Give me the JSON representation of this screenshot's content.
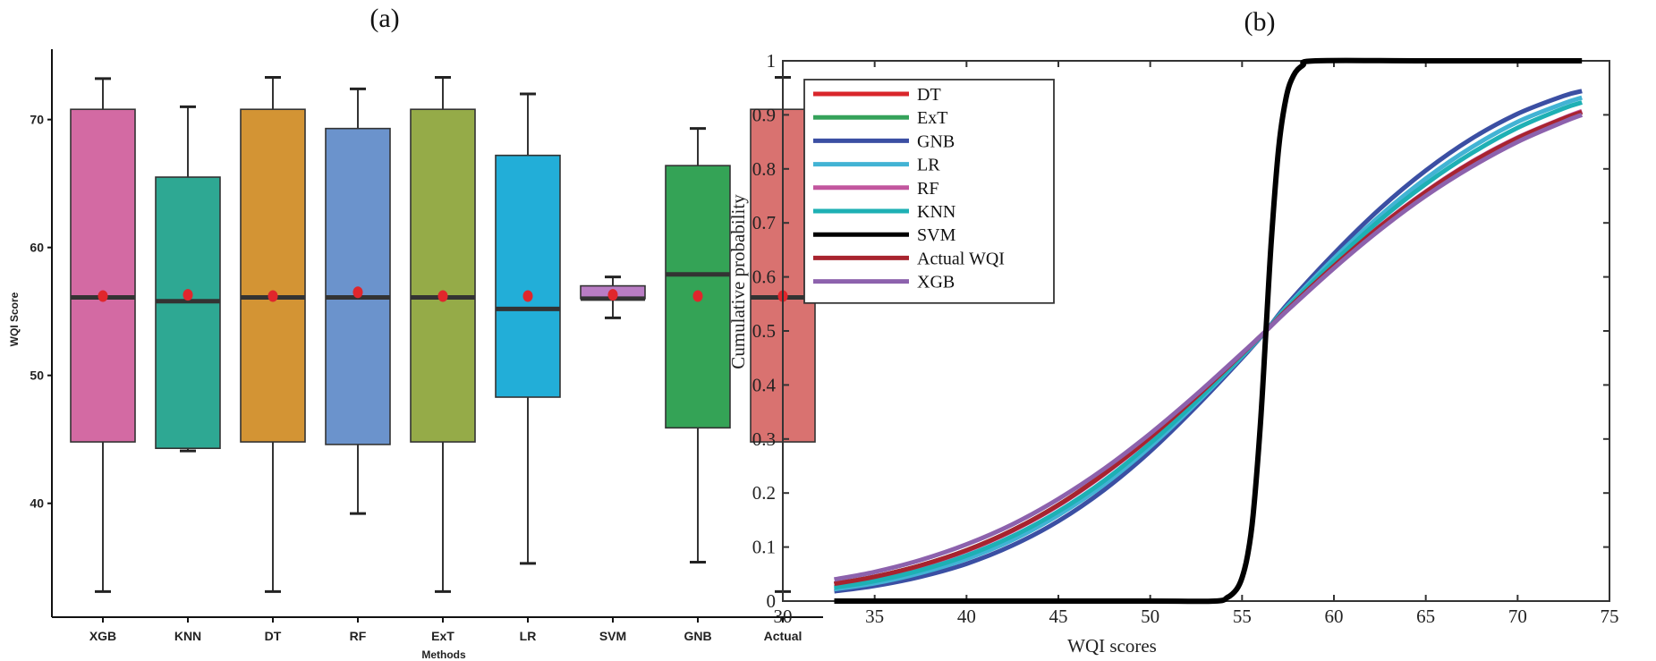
{
  "chart_data": [
    {
      "type": "box",
      "panel_label": "(a)",
      "title": "",
      "xlabel": "Methods",
      "ylabel": "WQI Score",
      "ylim": [
        31.1,
        75.5
      ],
      "yticks": [
        40,
        50,
        60,
        70
      ],
      "categories": [
        "XGB",
        "KNN",
        "DT",
        "RF",
        "ExT",
        "LR",
        "SVM",
        "GNB",
        "Actual"
      ],
      "series": [
        {
          "name": "XGB",
          "color": "#d36aa3",
          "whisker_high": 73.2,
          "q3": 70.8,
          "median": 56.1,
          "mean": 56.2,
          "q1": 44.8,
          "whisker_low": 33.1
        },
        {
          "name": "KNN",
          "color": "#2ea893",
          "whisker_high": 71.0,
          "q3": 65.5,
          "median": 55.8,
          "mean": 56.3,
          "q1": 44.3,
          "whisker_low": 44.1
        },
        {
          "name": "DT",
          "color": "#d39434",
          "whisker_high": 73.3,
          "q3": 70.8,
          "median": 56.1,
          "mean": 56.2,
          "q1": 44.8,
          "whisker_low": 33.1
        },
        {
          "name": "RF",
          "color": "#6b93cc",
          "whisker_high": 72.4,
          "q3": 69.3,
          "median": 56.1,
          "mean": 56.5,
          "q1": 44.6,
          "whisker_low": 39.2
        },
        {
          "name": "ExT",
          "color": "#95ab48",
          "whisker_high": 73.3,
          "q3": 70.8,
          "median": 56.1,
          "mean": 56.2,
          "q1": 44.8,
          "whisker_low": 33.1
        },
        {
          "name": "LR",
          "color": "#22aed8",
          "whisker_high": 72.0,
          "q3": 67.2,
          "median": 55.2,
          "mean": 56.2,
          "q1": 48.3,
          "whisker_low": 35.3
        },
        {
          "name": "SVM",
          "color": "#b97dc4",
          "whisker_high": 57.7,
          "q3": 57.0,
          "median": 56.0,
          "mean": 56.3,
          "q1": 56.0,
          "whisker_low": 54.5
        },
        {
          "name": "GNB",
          "color": "#34a356",
          "whisker_high": 69.3,
          "q3": 66.4,
          "median": 57.9,
          "mean": 56.2,
          "q1": 45.9,
          "whisker_low": 35.4
        },
        {
          "name": "Actual",
          "color": "#d97270",
          "whisker_high": 73.3,
          "q3": 70.8,
          "median": 56.1,
          "mean": 56.2,
          "q1": 44.8,
          "whisker_low": 33.1
        }
      ],
      "mean_marker_color": "#e0262c",
      "median_color": "#333333",
      "grid": false
    },
    {
      "type": "line",
      "panel_label": "(b)",
      "title": "",
      "xlabel": "WQI scores",
      "ylabel": "Cumulative probability",
      "xlim": [
        30,
        75
      ],
      "ylim": [
        0,
        1
      ],
      "xticks": [
        30,
        35,
        40,
        45,
        50,
        55,
        60,
        65,
        70,
        75
      ],
      "yticks": [
        0,
        0.1,
        0.2,
        0.3,
        0.4,
        0.5,
        0.6,
        0.7,
        0.8,
        0.9,
        1
      ],
      "ytick_labels": [
        "0",
        "0.1",
        "0.2",
        "0.3",
        "0.4",
        "0.5",
        "0.6",
        "0.7",
        "0.8",
        "0.9",
        "1"
      ],
      "legend_position": "top-left",
      "grid": false,
      "x": [
        32.8,
        35,
        37.5,
        40,
        42.5,
        45,
        47.5,
        50,
        52.5,
        55,
        56.3,
        57.5,
        60,
        62.5,
        65,
        67.5,
        70,
        72.5,
        73.5
      ],
      "series": [
        {
          "name": "DT",
          "color": "#d9262b",
          "values": [
            0.032,
            0.045,
            0.066,
            0.094,
            0.131,
            0.178,
            0.236,
            0.303,
            0.378,
            0.458,
            0.5,
            0.541,
            0.62,
            0.693,
            0.757,
            0.812,
            0.857,
            0.893,
            0.905
          ]
        },
        {
          "name": "ExT",
          "color": "#35a25a",
          "values": [
            0.032,
            0.045,
            0.066,
            0.094,
            0.131,
            0.178,
            0.236,
            0.303,
            0.378,
            0.458,
            0.5,
            0.541,
            0.62,
            0.693,
            0.757,
            0.812,
            0.857,
            0.893,
            0.905
          ]
        },
        {
          "name": "GNB",
          "color": "#3b4fa3",
          "values": [
            0.018,
            0.028,
            0.045,
            0.069,
            0.103,
            0.148,
            0.206,
            0.277,
            0.36,
            0.45,
            0.5,
            0.551,
            0.643,
            0.726,
            0.797,
            0.856,
            0.902,
            0.935,
            0.944
          ]
        },
        {
          "name": "LR",
          "color": "#42b3d4",
          "values": [
            0.022,
            0.033,
            0.052,
            0.078,
            0.113,
            0.159,
            0.216,
            0.286,
            0.366,
            0.453,
            0.5,
            0.547,
            0.634,
            0.713,
            0.782,
            0.84,
            0.887,
            0.921,
            0.932
          ]
        },
        {
          "name": "RF",
          "color": "#c2569e",
          "values": [
            0.031,
            0.044,
            0.065,
            0.093,
            0.13,
            0.177,
            0.235,
            0.302,
            0.377,
            0.457,
            0.5,
            0.542,
            0.621,
            0.694,
            0.758,
            0.813,
            0.858,
            0.894,
            0.907
          ]
        },
        {
          "name": "KNN",
          "color": "#1eb0b4",
          "values": [
            0.025,
            0.037,
            0.057,
            0.084,
            0.12,
            0.166,
            0.223,
            0.292,
            0.37,
            0.455,
            0.5,
            0.545,
            0.628,
            0.705,
            0.772,
            0.829,
            0.876,
            0.912,
            0.923
          ]
        },
        {
          "name": "SVM",
          "color": "#000000",
          "values": [
            0,
            0,
            0,
            0,
            0,
            0,
            0,
            0,
            0.0,
            0.03,
            0.5,
            0.985,
            1.0,
            1.0,
            1.0,
            1.0,
            1.0,
            1.0,
            1.0
          ]
        },
        {
          "name": "Actual WQI",
          "color": "#a8242f",
          "values": [
            0.032,
            0.045,
            0.066,
            0.094,
            0.131,
            0.178,
            0.236,
            0.303,
            0.378,
            0.458,
            0.5,
            0.541,
            0.62,
            0.693,
            0.757,
            0.812,
            0.857,
            0.893,
            0.905
          ]
        },
        {
          "name": "XGB",
          "color": "#8d62ad",
          "values": [
            0.04,
            0.054,
            0.076,
            0.105,
            0.142,
            0.189,
            0.245,
            0.31,
            0.382,
            0.459,
            0.5,
            0.539,
            0.616,
            0.687,
            0.75,
            0.804,
            0.85,
            0.887,
            0.9
          ]
        }
      ]
    }
  ]
}
